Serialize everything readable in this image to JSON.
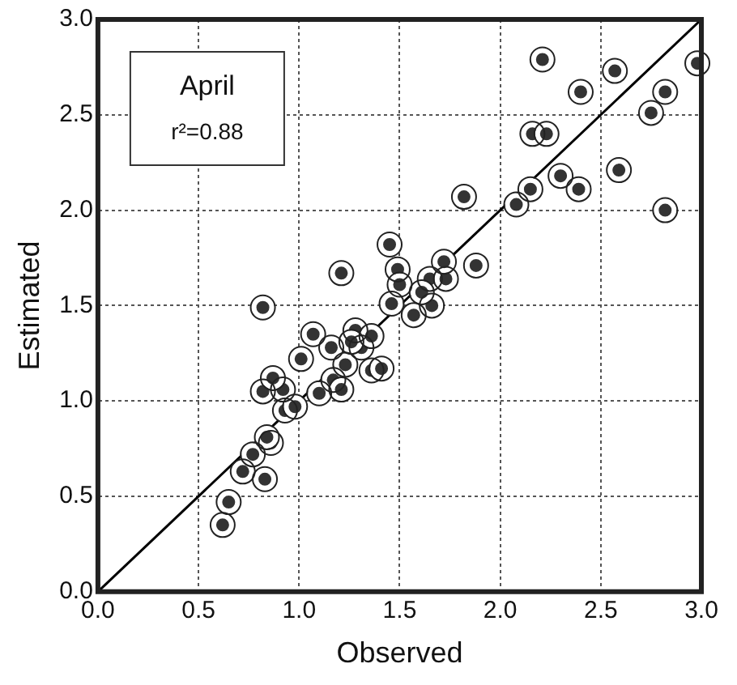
{
  "chart_data": {
    "type": "scatter",
    "xlabel": "Observed",
    "ylabel": "Estimated",
    "annotations": [
      "April",
      "r²=0.88"
    ],
    "xlim": [
      0,
      3
    ],
    "ylim": [
      0,
      3
    ],
    "xticks": [
      {
        "value": 0,
        "label": "0.0"
      },
      {
        "value": 0.5,
        "label": "0.5"
      },
      {
        "value": 1,
        "label": "1.0"
      },
      {
        "value": 1.5,
        "label": "1.5"
      },
      {
        "value": 2,
        "label": "2.0"
      },
      {
        "value": 2.5,
        "label": "2.5"
      },
      {
        "value": 3,
        "label": "3.0"
      }
    ],
    "yticks": [
      {
        "value": 0,
        "label": "0.0"
      },
      {
        "value": 0.5,
        "label": "0.5"
      },
      {
        "value": 1,
        "label": "1.0"
      },
      {
        "value": 1.5,
        "label": "1.5"
      },
      {
        "value": 2,
        "label": "2.0"
      },
      {
        "value": 2.5,
        "label": "2.5"
      },
      {
        "value": 3,
        "label": "3.0"
      }
    ],
    "grid": true,
    "legend": false,
    "marker": "circle",
    "series": [
      {
        "color": "#333333",
        "x": [
          0.62,
          0.65,
          0.72,
          0.77,
          0.86,
          0.83,
          0.84,
          0.82,
          0.92,
          0.87,
          0.93,
          0.98,
          1.01,
          1.07,
          1.16,
          1.1,
          1.17,
          1.23,
          1.21,
          1.31,
          1.36,
          1.41,
          1.28,
          1.36,
          1.26,
          1.21,
          0.82,
          1.46,
          1.49,
          1.45,
          1.57,
          1.66,
          1.65,
          1.73,
          1.72,
          1.88,
          1.82,
          1.61,
          1.5,
          2.08,
          2.15,
          2.16,
          2.23,
          2.21,
          2.39,
          2.3,
          2.4,
          2.57,
          2.59,
          2.82,
          2.82,
          2.75,
          2.98
        ],
        "values": [
          0.35,
          0.47,
          0.63,
          0.72,
          0.78,
          0.59,
          0.81,
          1.05,
          1.06,
          1.12,
          0.95,
          0.97,
          1.22,
          1.35,
          1.28,
          1.04,
          1.11,
          1.19,
          1.06,
          1.28,
          1.16,
          1.17,
          1.37,
          1.34,
          1.31,
          1.67,
          1.49,
          1.51,
          1.69,
          1.82,
          1.45,
          1.5,
          1.64,
          1.64,
          1.73,
          1.71,
          2.07,
          1.57,
          1.61,
          2.03,
          2.11,
          2.4,
          2.4,
          2.79,
          2.11,
          2.18,
          2.62,
          2.73,
          2.21,
          2.0,
          2.62,
          2.51,
          2.77
        ]
      },
      {
        "type": "line",
        "color": "#000000",
        "marker": "none",
        "x": [
          0,
          3
        ],
        "values": [
          0,
          3
        ]
      }
    ]
  }
}
